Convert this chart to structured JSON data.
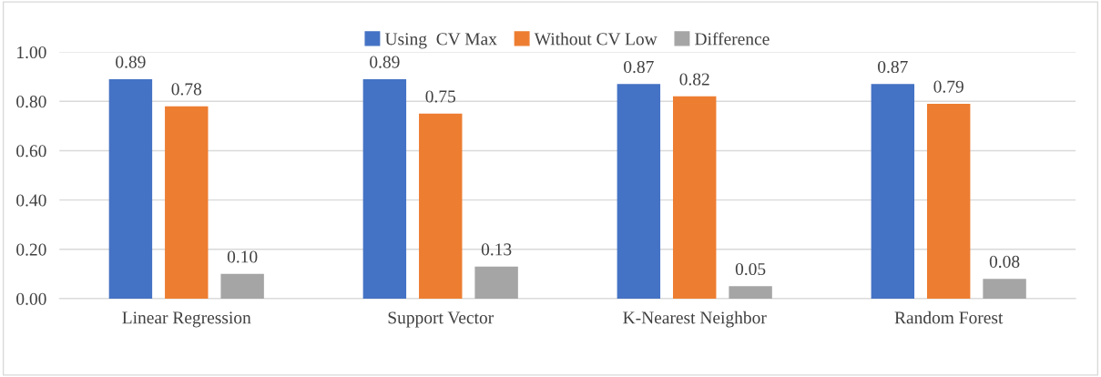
{
  "chart_data": {
    "type": "bar",
    "categories": [
      "Linear Regression",
      "Support Vector",
      "K-Nearest Neighbor",
      "Random Forest"
    ],
    "series": [
      {
        "name": "Using  CV Max",
        "color": "#4472c4",
        "values": [
          0.89,
          0.89,
          0.87,
          0.87
        ],
        "value_labels": [
          "0.89",
          "0.89",
          "0.87",
          "0.87"
        ]
      },
      {
        "name": "Without CV Low",
        "color": "#ed7d31",
        "values": [
          0.78,
          0.75,
          0.82,
          0.79
        ],
        "value_labels": [
          "0.78",
          "0.75",
          "0.82",
          "0.79"
        ]
      },
      {
        "name": "Difference",
        "color": "#a5a5a5",
        "values": [
          0.1,
          0.13,
          0.05,
          0.08
        ],
        "value_labels": [
          "0.10",
          "0.13",
          "0.05",
          "0.08"
        ]
      }
    ],
    "ylim": [
      0,
      1.0
    ],
    "yticks": [
      {
        "value": 0,
        "label": "0.00"
      },
      {
        "value": 0.2,
        "label": "0.20"
      },
      {
        "value": 0.4,
        "label": "0.40"
      },
      {
        "value": 0.6,
        "label": "0.60"
      },
      {
        "value": 0.8,
        "label": "0.80"
      },
      {
        "value": 1.0,
        "label": "1.00"
      }
    ],
    "grid": "y",
    "legend": "top"
  }
}
